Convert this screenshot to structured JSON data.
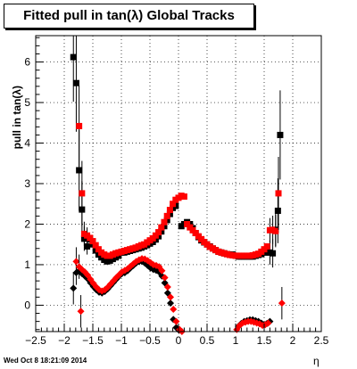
{
  "chart_data": {
    "type": "scatter",
    "title": "Fitted pull in tan(λ)  Global Tracks",
    "xlabel": "η",
    "ylabel": "pull in tan(λ)",
    "xlim": [
      -2.5,
      2.5
    ],
    "ylim": [
      -0.65,
      6.65
    ],
    "grid": true,
    "x_ticks": [
      -2.5,
      -2,
      -1.5,
      -1,
      -0.5,
      0,
      0.5,
      1,
      1.5,
      2,
      2.5
    ],
    "x_tick_labels": [
      "−2.5",
      "−2",
      "−1.5",
      "−1",
      "−0.5",
      "0",
      "0.5",
      "1",
      "1.5",
      "2",
      "2.5"
    ],
    "y_ticks": [
      0,
      1,
      2,
      3,
      4,
      5,
      6
    ],
    "y_tick_labels": [
      "0",
      "1",
      "2",
      "3",
      "4",
      "5",
      "6"
    ],
    "series": [
      {
        "name": "",
        "marker": "square",
        "color": "#000000",
        "points": [
          {
            "x": -1.84,
            "y": 6.12,
            "err": 1.1
          },
          {
            "x": -1.79,
            "y": 5.48,
            "err": 1.2
          },
          {
            "x": -1.74,
            "y": 3.33,
            "err": 1.0
          },
          {
            "x": -1.69,
            "y": 2.36,
            "err": 0.7
          },
          {
            "x": -1.65,
            "y": 1.64,
            "err": 0.3
          },
          {
            "x": -1.6,
            "y": 1.45,
            "err": 0.2
          },
          {
            "x": -1.55,
            "y": 1.62
          },
          {
            "x": -1.5,
            "y": 1.5
          },
          {
            "x": -1.45,
            "y": 1.35
          },
          {
            "x": -1.4,
            "y": 1.25
          },
          {
            "x": -1.35,
            "y": 1.18
          },
          {
            "x": -1.3,
            "y": 1.12
          },
          {
            "x": -1.25,
            "y": 1.08
          },
          {
            "x": -1.2,
            "y": 1.1
          },
          {
            "x": -1.15,
            "y": 1.14
          },
          {
            "x": -1.1,
            "y": 1.18
          },
          {
            "x": -1.05,
            "y": 1.22
          },
          {
            "x": -1.0,
            "y": 1.3
          },
          {
            "x": -0.95,
            "y": 1.3
          },
          {
            "x": -0.9,
            "y": 1.32
          },
          {
            "x": -0.85,
            "y": 1.34
          },
          {
            "x": -0.8,
            "y": 1.36
          },
          {
            "x": -0.75,
            "y": 1.38
          },
          {
            "x": -0.7,
            "y": 1.4
          },
          {
            "x": -0.65,
            "y": 1.42
          },
          {
            "x": -0.6,
            "y": 1.45
          },
          {
            "x": -0.55,
            "y": 1.48
          },
          {
            "x": -0.5,
            "y": 1.52
          },
          {
            "x": -0.45,
            "y": 1.56
          },
          {
            "x": -0.4,
            "y": 1.62
          },
          {
            "x": -0.35,
            "y": 1.7
          },
          {
            "x": -0.3,
            "y": 1.82
          },
          {
            "x": -0.25,
            "y": 1.95
          },
          {
            "x": -0.2,
            "y": 2.1
          },
          {
            "x": -0.15,
            "y": 2.25
          },
          {
            "x": -0.1,
            "y": 2.4
          },
          {
            "x": -0.05,
            "y": 2.45
          },
          {
            "x": 0.05,
            "y": 1.95
          },
          {
            "x": 0.1,
            "y": 2.0
          },
          {
            "x": 0.15,
            "y": 2.05
          },
          {
            "x": 0.2,
            "y": 2.0
          },
          {
            "x": 0.25,
            "y": 1.9
          },
          {
            "x": 0.3,
            "y": 1.78
          },
          {
            "x": 0.35,
            "y": 1.68
          },
          {
            "x": 0.4,
            "y": 1.6
          },
          {
            "x": 0.45,
            "y": 1.55
          },
          {
            "x": 0.5,
            "y": 1.5
          },
          {
            "x": 0.55,
            "y": 1.45
          },
          {
            "x": 0.6,
            "y": 1.4
          },
          {
            "x": 0.65,
            "y": 1.36
          },
          {
            "x": 0.7,
            "y": 1.32
          },
          {
            "x": 0.75,
            "y": 1.3
          },
          {
            "x": 0.8,
            "y": 1.28
          },
          {
            "x": 0.85,
            "y": 1.26
          },
          {
            "x": 0.9,
            "y": 1.25
          },
          {
            "x": 0.95,
            "y": 1.25
          },
          {
            "x": 1.0,
            "y": 1.22
          },
          {
            "x": 1.05,
            "y": 1.2
          },
          {
            "x": 1.1,
            "y": 1.2
          },
          {
            "x": 1.15,
            "y": 1.2
          },
          {
            "x": 1.2,
            "y": 1.2
          },
          {
            "x": 1.25,
            "y": 1.2
          },
          {
            "x": 1.3,
            "y": 1.2
          },
          {
            "x": 1.35,
            "y": 1.22
          },
          {
            "x": 1.4,
            "y": 1.24
          },
          {
            "x": 1.45,
            "y": 1.26
          },
          {
            "x": 1.5,
            "y": 1.3
          },
          {
            "x": 1.55,
            "y": 1.3
          },
          {
            "x": 1.6,
            "y": 1.3,
            "err": 0.3
          },
          {
            "x": 1.65,
            "y": 1.28,
            "err": 0.35
          },
          {
            "x": 1.7,
            "y": 1.86,
            "err": 0.4
          },
          {
            "x": 1.74,
            "y": 2.33,
            "err": 0.8
          },
          {
            "x": 1.78,
            "y": 4.2,
            "err": 1.1
          }
        ]
      },
      {
        "name": "",
        "marker": "square",
        "color": "#ff0000",
        "points": [
          {
            "x": -1.74,
            "y": 4.42,
            "err": 1.0
          },
          {
            "x": -1.69,
            "y": 2.76,
            "err": 0.8
          },
          {
            "x": -1.65,
            "y": 1.76,
            "err": 0.3
          },
          {
            "x": -1.6,
            "y": 1.72,
            "err": 0.2
          },
          {
            "x": -1.55,
            "y": 1.66
          },
          {
            "x": -1.5,
            "y": 1.58
          },
          {
            "x": -1.45,
            "y": 1.48
          },
          {
            "x": -1.4,
            "y": 1.38
          },
          {
            "x": -1.35,
            "y": 1.3
          },
          {
            "x": -1.3,
            "y": 1.25
          },
          {
            "x": -1.25,
            "y": 1.22
          },
          {
            "x": -1.2,
            "y": 1.22
          },
          {
            "x": -1.15,
            "y": 1.25
          },
          {
            "x": -1.1,
            "y": 1.28
          },
          {
            "x": -1.05,
            "y": 1.3
          },
          {
            "x": -1.0,
            "y": 1.32
          },
          {
            "x": -0.95,
            "y": 1.34
          },
          {
            "x": -0.9,
            "y": 1.36
          },
          {
            "x": -0.85,
            "y": 1.38
          },
          {
            "x": -0.8,
            "y": 1.4
          },
          {
            "x": -0.75,
            "y": 1.42
          },
          {
            "x": -0.7,
            "y": 1.45
          },
          {
            "x": -0.65,
            "y": 1.48
          },
          {
            "x": -0.6,
            "y": 1.5
          },
          {
            "x": -0.55,
            "y": 1.55
          },
          {
            "x": -0.5,
            "y": 1.6
          },
          {
            "x": -0.45,
            "y": 1.65
          },
          {
            "x": -0.4,
            "y": 1.72
          },
          {
            "x": -0.35,
            "y": 1.8
          },
          {
            "x": -0.3,
            "y": 1.92
          },
          {
            "x": -0.25,
            "y": 2.05
          },
          {
            "x": -0.2,
            "y": 2.2
          },
          {
            "x": -0.15,
            "y": 2.35
          },
          {
            "x": -0.1,
            "y": 2.5
          },
          {
            "x": -0.05,
            "y": 2.6
          },
          {
            "x": 0.0,
            "y": 2.65
          },
          {
            "x": 0.05,
            "y": 2.7
          },
          {
            "x": 0.1,
            "y": 2.68
          },
          {
            "x": 0.15,
            "y": 2.0
          },
          {
            "x": 0.2,
            "y": 1.92
          },
          {
            "x": 0.25,
            "y": 1.85
          },
          {
            "x": 0.3,
            "y": 1.78
          },
          {
            "x": 0.35,
            "y": 1.7
          },
          {
            "x": 0.4,
            "y": 1.63
          },
          {
            "x": 0.45,
            "y": 1.56
          },
          {
            "x": 0.5,
            "y": 1.5
          },
          {
            "x": 0.55,
            "y": 1.44
          },
          {
            "x": 0.6,
            "y": 1.4
          },
          {
            "x": 0.65,
            "y": 1.36
          },
          {
            "x": 0.7,
            "y": 1.32
          },
          {
            "x": 0.75,
            "y": 1.3
          },
          {
            "x": 0.8,
            "y": 1.28
          },
          {
            "x": 0.85,
            "y": 1.26
          },
          {
            "x": 0.9,
            "y": 1.24
          },
          {
            "x": 0.95,
            "y": 1.23
          },
          {
            "x": 1.0,
            "y": 1.22
          },
          {
            "x": 1.05,
            "y": 1.22
          },
          {
            "x": 1.1,
            "y": 1.22
          },
          {
            "x": 1.15,
            "y": 1.22
          },
          {
            "x": 1.2,
            "y": 1.22
          },
          {
            "x": 1.25,
            "y": 1.22
          },
          {
            "x": 1.3,
            "y": 1.23
          },
          {
            "x": 1.35,
            "y": 1.25
          },
          {
            "x": 1.4,
            "y": 1.27
          },
          {
            "x": 1.45,
            "y": 1.32
          },
          {
            "x": 1.5,
            "y": 1.38
          },
          {
            "x": 1.55,
            "y": 1.45
          },
          {
            "x": 1.6,
            "y": 1.85,
            "err": 0.3
          },
          {
            "x": 1.65,
            "y": 1.86,
            "err": 0.35
          },
          {
            "x": 1.7,
            "y": 1.83,
            "err": 0.4
          },
          {
            "x": 1.75,
            "y": 2.76,
            "err": 0.9
          }
        ]
      },
      {
        "name": "",
        "marker": "diamond",
        "color": "#000000",
        "points": [
          {
            "x": -1.84,
            "y": 0.42,
            "err": 0.4
          },
          {
            "x": -1.79,
            "y": 0.8,
            "err": 0.3
          },
          {
            "x": -1.74,
            "y": 0.85
          },
          {
            "x": -1.69,
            "y": 0.78
          },
          {
            "x": -1.64,
            "y": 0.72
          },
          {
            "x": -1.59,
            "y": 0.65
          },
          {
            "x": -1.54,
            "y": 0.55
          },
          {
            "x": -1.49,
            "y": 0.46
          },
          {
            "x": -1.44,
            "y": 0.38
          },
          {
            "x": -1.39,
            "y": 0.32
          },
          {
            "x": -1.34,
            "y": 0.3
          },
          {
            "x": -1.29,
            "y": 0.34
          },
          {
            "x": -1.24,
            "y": 0.4
          },
          {
            "x": -1.19,
            "y": 0.48
          },
          {
            "x": -1.14,
            "y": 0.56
          },
          {
            "x": -1.09,
            "y": 0.64
          },
          {
            "x": -1.04,
            "y": 0.72
          },
          {
            "x": -0.99,
            "y": 0.78
          },
          {
            "x": -0.94,
            "y": 0.8
          },
          {
            "x": -0.89,
            "y": 0.85
          },
          {
            "x": -0.84,
            "y": 0.92
          },
          {
            "x": -0.79,
            "y": 0.98
          },
          {
            "x": -0.74,
            "y": 1.04
          },
          {
            "x": -0.69,
            "y": 1.08
          },
          {
            "x": -0.64,
            "y": 1.08
          },
          {
            "x": -0.59,
            "y": 1.04
          },
          {
            "x": -0.54,
            "y": 0.98
          },
          {
            "x": -0.49,
            "y": 0.92
          },
          {
            "x": -0.44,
            "y": 0.88
          },
          {
            "x": -0.39,
            "y": 0.86
          },
          {
            "x": -0.34,
            "y": 0.82
          },
          {
            "x": -0.29,
            "y": 0.72
          },
          {
            "x": -0.24,
            "y": 0.55
          },
          {
            "x": -0.19,
            "y": 0.3
          },
          {
            "x": -0.14,
            "y": 0.05
          },
          {
            "x": -0.09,
            "y": -0.35
          },
          {
            "x": -0.04,
            "y": -0.55
          },
          {
            "x": 0.01,
            "y": -0.62
          },
          {
            "x": 1.05,
            "y": -0.52
          },
          {
            "x": 1.1,
            "y": -0.45
          },
          {
            "x": 1.15,
            "y": -0.4
          },
          {
            "x": 1.2,
            "y": -0.38
          },
          {
            "x": 1.25,
            "y": -0.36
          },
          {
            "x": 1.3,
            "y": -0.36
          },
          {
            "x": 1.35,
            "y": -0.38
          },
          {
            "x": 1.4,
            "y": -0.4
          },
          {
            "x": 1.45,
            "y": -0.44
          },
          {
            "x": 1.5,
            "y": -0.48
          },
          {
            "x": 1.55,
            "y": -0.45
          },
          {
            "x": 1.6,
            "y": -0.4
          }
        ]
      },
      {
        "name": "",
        "marker": "diamond",
        "color": "#ff0000",
        "points": [
          {
            "x": -1.79,
            "y": 1.08,
            "err": 0.35
          },
          {
            "x": -1.74,
            "y": 0.95,
            "err": 0.3
          },
          {
            "x": -1.71,
            "y": -0.15,
            "err": 0.4
          },
          {
            "x": -1.69,
            "y": 0.88
          },
          {
            "x": -1.64,
            "y": 0.82
          },
          {
            "x": -1.59,
            "y": 0.74
          },
          {
            "x": -1.54,
            "y": 0.64
          },
          {
            "x": -1.49,
            "y": 0.54
          },
          {
            "x": -1.44,
            "y": 0.45
          },
          {
            "x": -1.39,
            "y": 0.38
          },
          {
            "x": -1.34,
            "y": 0.35
          },
          {
            "x": -1.29,
            "y": 0.38
          },
          {
            "x": -1.24,
            "y": 0.44
          },
          {
            "x": -1.19,
            "y": 0.52
          },
          {
            "x": -1.14,
            "y": 0.6
          },
          {
            "x": -1.09,
            "y": 0.68
          },
          {
            "x": -1.04,
            "y": 0.75
          },
          {
            "x": -0.99,
            "y": 0.82
          },
          {
            "x": -0.94,
            "y": 0.86
          },
          {
            "x": -0.89,
            "y": 0.9
          },
          {
            "x": -0.84,
            "y": 0.96
          },
          {
            "x": -0.79,
            "y": 1.02
          },
          {
            "x": -0.74,
            "y": 1.08
          },
          {
            "x": -0.69,
            "y": 1.12
          },
          {
            "x": -0.64,
            "y": 1.15
          },
          {
            "x": -0.59,
            "y": 1.14
          },
          {
            "x": -0.54,
            "y": 1.1
          },
          {
            "x": -0.49,
            "y": 1.05
          },
          {
            "x": -0.44,
            "y": 1.0
          },
          {
            "x": -0.39,
            "y": 0.98
          },
          {
            "x": -0.34,
            "y": 0.95
          },
          {
            "x": -0.29,
            "y": 0.85
          },
          {
            "x": -0.24,
            "y": 0.68
          },
          {
            "x": -0.19,
            "y": 0.45
          },
          {
            "x": -0.14,
            "y": 0.2
          },
          {
            "x": -0.09,
            "y": -0.1
          },
          {
            "x": -0.04,
            "y": -0.4
          },
          {
            "x": 0.02,
            "y": -0.6
          },
          {
            "x": 0.06,
            "y": -0.65
          },
          {
            "x": 1.02,
            "y": -0.6
          },
          {
            "x": 1.07,
            "y": -0.5
          },
          {
            "x": 1.12,
            "y": -0.44
          },
          {
            "x": 1.17,
            "y": -0.42
          },
          {
            "x": 1.22,
            "y": -0.4
          },
          {
            "x": 1.27,
            "y": -0.4
          },
          {
            "x": 1.32,
            "y": -0.42
          },
          {
            "x": 1.37,
            "y": -0.44
          },
          {
            "x": 1.42,
            "y": -0.46
          },
          {
            "x": 1.47,
            "y": -0.5
          },
          {
            "x": 1.52,
            "y": -0.48
          },
          {
            "x": 1.57,
            "y": -0.44
          },
          {
            "x": 1.81,
            "y": 0.05,
            "err": 0.4
          }
        ]
      }
    ]
  },
  "footer": {
    "timestamp": "Wed Oct  8 18:21:09 2014"
  }
}
